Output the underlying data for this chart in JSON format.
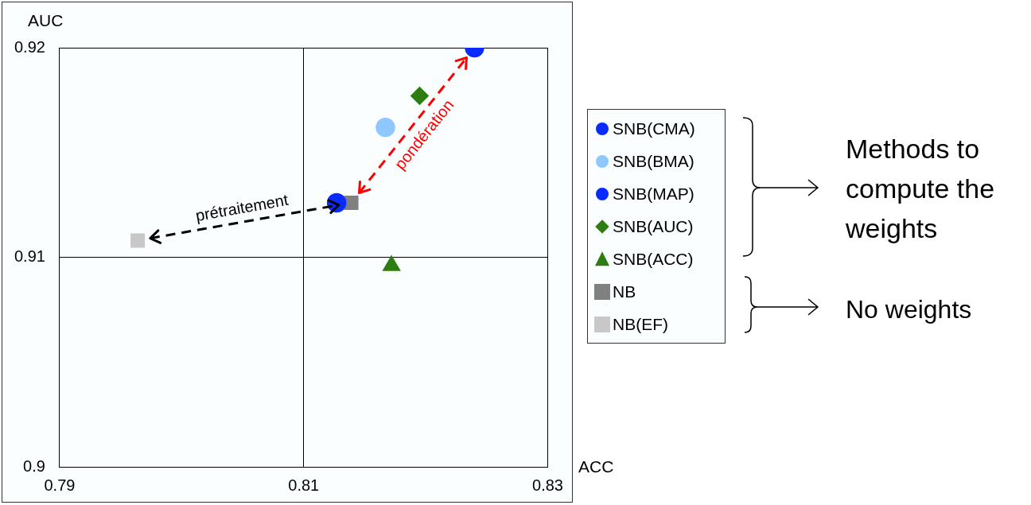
{
  "chart_data": {
    "type": "scatter",
    "xlabel": "ACC",
    "ylabel": "AUC",
    "xlim": [
      0.79,
      0.83
    ],
    "xticks": [
      0.79,
      0.81,
      0.83
    ],
    "ylim": [
      0.9,
      0.92
    ],
    "yticks": [
      0.9,
      0.91,
      0.92
    ],
    "grid": true,
    "legend": "right",
    "series": [
      {
        "name": "SNB(CMA)",
        "color": "#0a2bff",
        "marker": "circle",
        "x": [
          0.824
        ],
        "values": [
          0.92
        ]
      },
      {
        "name": "SNB(BMA)",
        "color": "#8ec8ff",
        "marker": "circle",
        "x": [
          0.8167
        ],
        "values": [
          0.9162
        ]
      },
      {
        "name": "SNB(MAP)",
        "color": "#0a2bff",
        "marker": "circle",
        "x": [
          0.8127
        ],
        "values": [
          0.9126
        ]
      },
      {
        "name": "SNB(AUC)",
        "color": "#2e7d12",
        "marker": "diamond",
        "x": [
          0.8195
        ],
        "values": [
          0.9177
        ]
      },
      {
        "name": "SNB(ACC)",
        "color": "#2e7d12",
        "marker": "triangle",
        "x": [
          0.8172
        ],
        "values": [
          0.9096
        ]
      },
      {
        "name": "NB",
        "color": "#808080",
        "marker": "square",
        "x": [
          0.8139
        ],
        "values": [
          0.9126
        ]
      },
      {
        "name": "NB(EF)",
        "color": "#c8c8c8",
        "marker": "square",
        "x": [
          0.7964
        ],
        "values": [
          0.9108
        ]
      }
    ],
    "annotations": [
      "prétraitement",
      "pondération",
      "Methods to compute the weights",
      "No weights"
    ]
  }
}
